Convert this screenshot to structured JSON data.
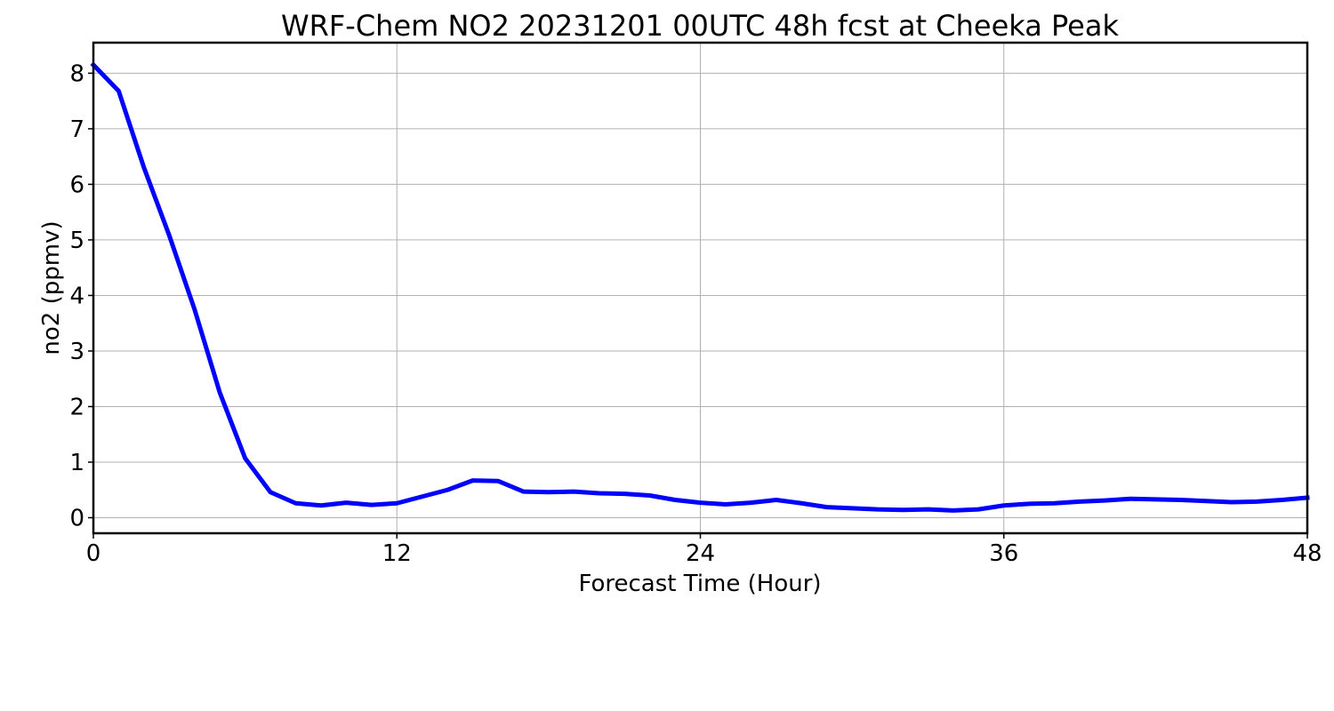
{
  "chart_data": {
    "type": "line",
    "title": "WRF-Chem NO2  20231201 00UTC 48h fcst at Cheeka Peak",
    "xlabel": "Forecast Time (Hour)",
    "ylabel": "no2  (ppmv)",
    "xlim": [
      0,
      48
    ],
    "ylim": [
      -0.28,
      8.55
    ],
    "xticks": [
      0,
      12,
      24,
      36,
      48
    ],
    "yticks": [
      0,
      1,
      2,
      3,
      4,
      5,
      6,
      7,
      8
    ],
    "grid": true,
    "series": [
      {
        "color": "#0000ff",
        "x": [
          0,
          1,
          2,
          3,
          4,
          5,
          6,
          7,
          8,
          9,
          10,
          11,
          12,
          13,
          14,
          15,
          16,
          17,
          18,
          19,
          20,
          21,
          22,
          23,
          24,
          25,
          26,
          27,
          28,
          29,
          30,
          31,
          32,
          33,
          34,
          35,
          36,
          37,
          38,
          39,
          40,
          41,
          42,
          43,
          44,
          45,
          46,
          47,
          48
        ],
        "y": [
          8.15,
          7.68,
          6.3,
          5.08,
          3.75,
          2.25,
          1.07,
          0.46,
          0.26,
          0.22,
          0.27,
          0.23,
          0.26,
          0.38,
          0.5,
          0.67,
          0.66,
          0.47,
          0.46,
          0.47,
          0.44,
          0.43,
          0.4,
          0.32,
          0.27,
          0.24,
          0.27,
          0.32,
          0.26,
          0.19,
          0.17,
          0.15,
          0.14,
          0.15,
          0.13,
          0.15,
          0.22,
          0.25,
          0.26,
          0.29,
          0.31,
          0.34,
          0.33,
          0.32,
          0.3,
          0.28,
          0.29,
          0.32,
          0.36
        ]
      }
    ]
  }
}
